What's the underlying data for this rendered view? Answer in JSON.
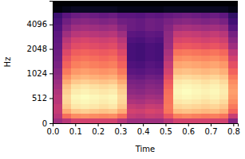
{
  "chart_data": {
    "type": "heatmap",
    "xlabel": "Time",
    "ylabel": "Hz",
    "log": "y",
    "xlim": [
      0,
      0.82
    ],
    "ylim": [
      0,
      8000
    ],
    "xticks": [
      {
        "value": 0,
        "label": "0.0"
      },
      {
        "value": 0.1,
        "label": "0.1"
      },
      {
        "value": 0.2,
        "label": "0.2"
      },
      {
        "value": 0.3,
        "label": "0.3"
      },
      {
        "value": 0.4,
        "label": "0.4"
      },
      {
        "value": 0.5,
        "label": "0.5"
      },
      {
        "value": 0.6,
        "label": "0.6"
      },
      {
        "value": 0.7,
        "label": "0.7"
      },
      {
        "value": 0.8,
        "label": "0.8"
      }
    ],
    "yticks": [
      0,
      512,
      1024,
      2048,
      4096
    ],
    "x_bins": [
      0,
      0.041,
      0.082,
      0.123,
      0.164,
      0.205,
      0.246,
      0.287,
      0.328,
      0.369,
      0.41,
      0.451,
      0.492,
      0.533,
      0.574,
      0.615,
      0.656,
      0.697,
      0.738,
      0.779,
      0.82
    ],
    "y_bins": [
      0,
      100,
      200,
      300,
      400,
      500,
      600,
      700,
      800,
      900,
      1000,
      1200,
      1450,
      1700,
      2048,
      2450,
      2900,
      3450,
      4096,
      4900,
      5800,
      6900,
      8000
    ],
    "z": [
      [
        -45,
        -40,
        -35,
        -35,
        -35,
        -35,
        -35,
        -40,
        -45,
        -45,
        -45,
        -45,
        -40,
        -35,
        -35,
        -35,
        -35,
        -35,
        -35,
        -50
      ],
      [
        -40,
        -25,
        -20,
        -19,
        -20,
        -21,
        -20,
        -25,
        -38,
        -39,
        -37,
        -38,
        -30,
        -22,
        -21,
        -22,
        -23,
        -22,
        -24,
        -37
      ],
      [
        -38,
        -15,
        -10,
        -9,
        -10,
        -11,
        -10,
        -15,
        -35,
        -36,
        -34,
        -35,
        -24,
        -12,
        -11,
        -12,
        -13,
        -12,
        -14,
        -27
      ],
      [
        -38,
        -10,
        -5,
        -4,
        -5,
        -6,
        -5,
        -10,
        -38,
        -39,
        -37,
        -38,
        -23,
        -8,
        -7,
        -8,
        -9,
        -8,
        -10,
        -23
      ],
      [
        -40,
        -8,
        -3,
        -2,
        -3,
        -4,
        -3,
        -8,
        -42,
        -43,
        -41,
        -42,
        -24,
        -5,
        -4,
        -5,
        -6,
        -5,
        -7,
        -20
      ],
      [
        -40,
        -7,
        -2,
        -1,
        -2,
        -3,
        -2,
        -7,
        -45,
        -46,
        -44,
        -45,
        -24,
        -3,
        -2,
        -3,
        -4,
        -3,
        -5,
        -18
      ],
      [
        -42,
        -9,
        -4,
        -3,
        -4,
        -5,
        -4,
        -9,
        -48,
        -49,
        -47,
        -48,
        -25,
        -2,
        -1,
        -2,
        -3,
        -2,
        -4,
        -17
      ],
      [
        -44,
        -11,
        -6,
        -5,
        -6,
        -7,
        -6,
        -11,
        -50,
        -51,
        -49,
        -50,
        -27,
        -3,
        -2,
        -3,
        -4,
        -3,
        -5,
        -18
      ],
      [
        -46,
        -15,
        -10,
        -9,
        -10,
        -11,
        -10,
        -15,
        -52,
        -53,
        -51,
        -52,
        -29,
        -5,
        -4,
        -5,
        -6,
        -5,
        -7,
        -20
      ],
      [
        -48,
        -19,
        -14,
        -13,
        -14,
        -15,
        -14,
        -19,
        -55,
        -56,
        -54,
        -55,
        -32,
        -8,
        -7,
        -8,
        -9,
        -8,
        -10,
        -23
      ],
      [
        -50,
        -23,
        -18,
        -17,
        -18,
        -19,
        -18,
        -23,
        -58,
        -59,
        -57,
        -58,
        -35,
        -12,
        -11,
        -12,
        -13,
        -12,
        -14,
        -27
      ],
      [
        -52,
        -27,
        -22,
        -21,
        -22,
        -23,
        -22,
        -27,
        -60,
        -61,
        -59,
        -60,
        -38,
        -16,
        -15,
        -16,
        -17,
        -16,
        -18,
        -31
      ],
      [
        -54,
        -30,
        -25,
        -24,
        -25,
        -26,
        -25,
        -30,
        -62,
        -63,
        -61,
        -62,
        -41,
        -20,
        -19,
        -20,
        -21,
        -20,
        -22,
        -35
      ],
      [
        -55,
        -33,
        -28,
        -27,
        -28,
        -29,
        -28,
        -33,
        -62,
        -63,
        -61,
        -62,
        -43,
        -24,
        -23,
        -24,
        -25,
        -24,
        -26,
        -39
      ],
      [
        -56,
        -37,
        -32,
        -31,
        -32,
        -33,
        -32,
        -37,
        -62,
        -63,
        -61,
        -62,
        -46,
        -30,
        -29,
        -30,
        -31,
        -30,
        -32,
        -45
      ],
      [
        -57,
        -40,
        -35,
        -34,
        -35,
        -36,
        -35,
        -40,
        -60,
        -61,
        -59,
        -60,
        -47,
        -34,
        -33,
        -34,
        -35,
        -34,
        -36,
        -49
      ],
      [
        -58,
        -45,
        -40,
        -39,
        -40,
        -41,
        -40,
        -45,
        -58,
        -59,
        -57,
        -58,
        -48,
        -38,
        -37,
        -38,
        -39,
        -38,
        -40,
        -53
      ],
      [
        -60,
        -50,
        -45,
        -44,
        -45,
        -46,
        -45,
        -50,
        -55,
        -56,
        -54,
        -55,
        -50,
        -44,
        -43,
        -44,
        -45,
        -44,
        -46,
        -59
      ],
      [
        -62,
        -54,
        -50,
        -49,
        -50,
        -51,
        -50,
        -54,
        -55,
        -56,
        -54,
        -55,
        -52,
        -50,
        -49,
        -50,
        -51,
        -50,
        -52,
        -63
      ],
      [
        -64,
        -58,
        -55,
        -54,
        -55,
        -56,
        -55,
        -58,
        -58,
        -59,
        -57,
        -58,
        -56,
        -55,
        -54,
        -55,
        -56,
        -55,
        -57,
        -66
      ],
      [
        -78,
        -76,
        -75,
        -75,
        -75,
        -75,
        -75,
        -76,
        -76,
        -76,
        -76,
        -76,
        -75,
        -75,
        -75,
        -75,
        -75,
        -75,
        -75,
        -77
      ],
      [
        -80,
        -80,
        -80,
        -80,
        -80,
        -80,
        -80,
        -80,
        -80,
        -80,
        -80,
        -80,
        -80,
        -80,
        -80,
        -80,
        -80,
        -80,
        -80,
        -80
      ]
    ]
  }
}
